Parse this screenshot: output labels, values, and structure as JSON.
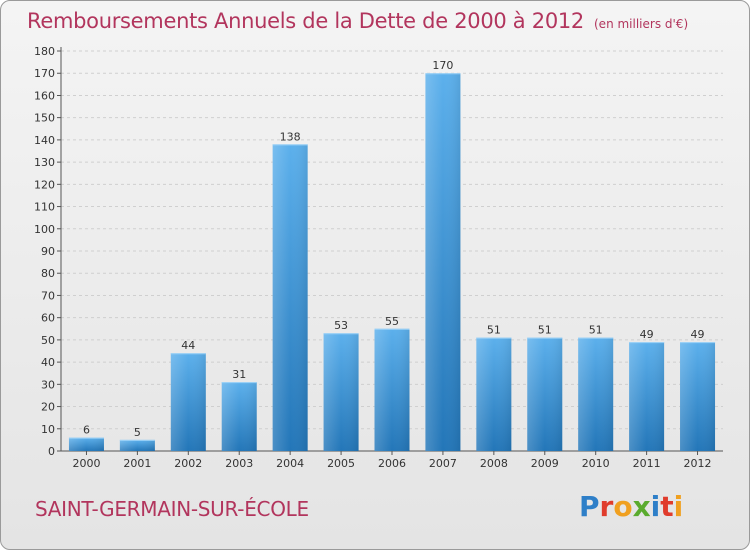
{
  "title": "Remboursements Annuels de la Dette de 2000 à 2012",
  "unit_note": "(en milliers d'€)",
  "commune": "SAINT-GERMAIN-SUR-ÉCOLE",
  "logo": {
    "text": "Proxiti",
    "letters": [
      {
        "ch": "P",
        "color": "#2e7fc8"
      },
      {
        "ch": "r",
        "color": "#e03c2c"
      },
      {
        "ch": "o",
        "color": "#f0a020"
      },
      {
        "ch": "x",
        "color": "#5aab2e"
      },
      {
        "ch": "i",
        "color": "#2e7fc8"
      },
      {
        "ch": "t",
        "color": "#e03c2c"
      },
      {
        "ch": "i",
        "color": "#f0a020"
      }
    ]
  },
  "colors": {
    "title": "#b2355d",
    "bar_light": "#5cb0ec",
    "bar_dark": "#2376b8"
  },
  "chart_data": {
    "type": "bar",
    "categories": [
      "2000",
      "2001",
      "2002",
      "2003",
      "2004",
      "2005",
      "2006",
      "2007",
      "2008",
      "2009",
      "2010",
      "2011",
      "2012"
    ],
    "values": [
      6,
      5,
      44,
      31,
      138,
      53,
      55,
      170,
      51,
      51,
      51,
      49,
      49
    ],
    "ylim": [
      0,
      180
    ],
    "yticks": [
      0,
      10,
      20,
      30,
      40,
      50,
      60,
      70,
      80,
      90,
      100,
      110,
      120,
      130,
      140,
      150,
      160,
      170,
      180
    ],
    "grid": true,
    "xlabel": "",
    "ylabel": ""
  }
}
